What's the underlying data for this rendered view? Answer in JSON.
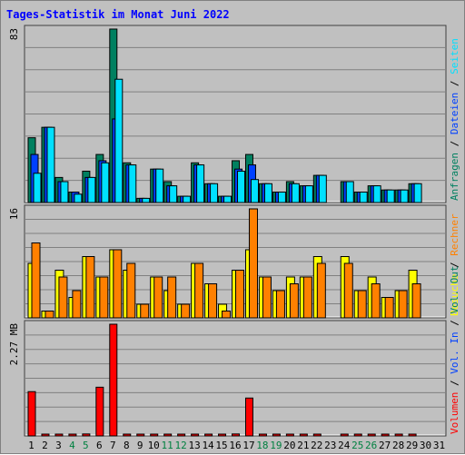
{
  "chart_data": {
    "type": "bar",
    "title": "Tages-Statistik im Monat Juni 2022",
    "days": [
      "1",
      "2",
      "3",
      "4",
      "5",
      "6",
      "7",
      "8",
      "9",
      "10",
      "11",
      "12",
      "13",
      "14",
      "15",
      "16",
      "17",
      "18",
      "19",
      "20",
      "21",
      "22",
      "23",
      "24",
      "25",
      "26",
      "27",
      "28",
      "29",
      "30",
      "31"
    ],
    "weekend_days": [
      "4",
      "5",
      "11",
      "12",
      "18",
      "19",
      "25",
      "26"
    ],
    "colors": {
      "title": "#0000ff",
      "background": "#c0c0c0",
      "plot_bg": "#c0c0c0",
      "weekday_label": "#000000",
      "weekend_label": "#008040",
      "anfragen": "#008060",
      "dateien": "#0040ff",
      "seiten": "#00e0ff",
      "besuche": "#ffff00",
      "rechner": "#ff8000",
      "volumen": "#ff0000"
    },
    "panels": [
      {
        "max_label": "83",
        "ymax": 83,
        "legend": [
          {
            "text": "Anfragen",
            "color": "#008060"
          },
          {
            "text": "Dateien",
            "color": "#0040ff"
          },
          {
            "text": "Seiten",
            "color": "#00e0ff"
          }
        ],
        "series": [
          {
            "name": "Anfragen",
            "color": "#008060",
            "values": [
              31,
              36,
              12,
              5,
              15,
              23,
              83,
              19,
              2,
              16,
              10,
              3,
              19,
              9,
              3,
              20,
              23,
              9,
              5,
              10,
              8,
              13,
              0,
              10,
              5,
              8,
              6,
              6,
              9,
              0,
              0
            ]
          },
          {
            "name": "Dateien",
            "color": "#0040ff",
            "values": [
              23,
              36,
              10,
              5,
              12,
              20,
              40,
              18,
              2,
              16,
              8,
              3,
              18,
              9,
              3,
              16,
              18,
              9,
              5,
              9,
              8,
              13,
              0,
              10,
              5,
              8,
              6,
              6,
              9,
              0,
              0
            ]
          },
          {
            "name": "Seiten",
            "color": "#00e0ff",
            "values": [
              14,
              36,
              10,
              4,
              12,
              19,
              59,
              18,
              2,
              16,
              8,
              3,
              18,
              9,
              3,
              15,
              11,
              9,
              5,
              9,
              8,
              13,
              0,
              10,
              5,
              8,
              6,
              6,
              9,
              0,
              0
            ]
          }
        ]
      },
      {
        "max_label": "16",
        "ymax": 16,
        "legend": [
          {
            "text": "Besuche",
            "color": "#ffff00"
          },
          {
            "text": "Rechner",
            "color": "#ff8000"
          }
        ],
        "series": [
          {
            "name": "Besuche",
            "color": "#ffff00",
            "values": [
              8,
              1,
              7,
              3,
              9,
              6,
              10,
              7,
              2,
              6,
              4,
              2,
              8,
              5,
              2,
              7,
              10,
              6,
              4,
              6,
              6,
              9,
              0,
              9,
              4,
              6,
              3,
              4,
              7,
              0,
              0
            ]
          },
          {
            "name": "Rechner",
            "color": "#ff8000",
            "values": [
              11,
              1,
              6,
              4,
              9,
              6,
              10,
              8,
              2,
              6,
              6,
              2,
              8,
              5,
              1,
              7,
              16,
              6,
              4,
              5,
              6,
              8,
              0,
              8,
              4,
              5,
              3,
              4,
              5,
              0,
              0
            ]
          }
        ]
      },
      {
        "max_label": "2.27 MB",
        "ymax": 2.27,
        "legend": [
          {
            "text": "Volumen",
            "color": "#ff0000"
          },
          {
            "text": "Vol. In",
            "color": "#0040ff"
          },
          {
            "text": "Vol. Out",
            "color": "#008060"
          }
        ],
        "series": [
          {
            "name": "Volumen",
            "color": "#ff0000",
            "values": [
              0.9,
              0.02,
              0.02,
              0.02,
              0.04,
              0.99,
              2.27,
              0.02,
              0.02,
              0.02,
              0.02,
              0.02,
              0.02,
              0.02,
              0.02,
              0.04,
              0.77,
              0.02,
              0.02,
              0.02,
              0.02,
              0.02,
              0,
              0.02,
              0.02,
              0.02,
              0.02,
              0.02,
              0.02,
              0,
              0
            ]
          }
        ]
      }
    ]
  }
}
